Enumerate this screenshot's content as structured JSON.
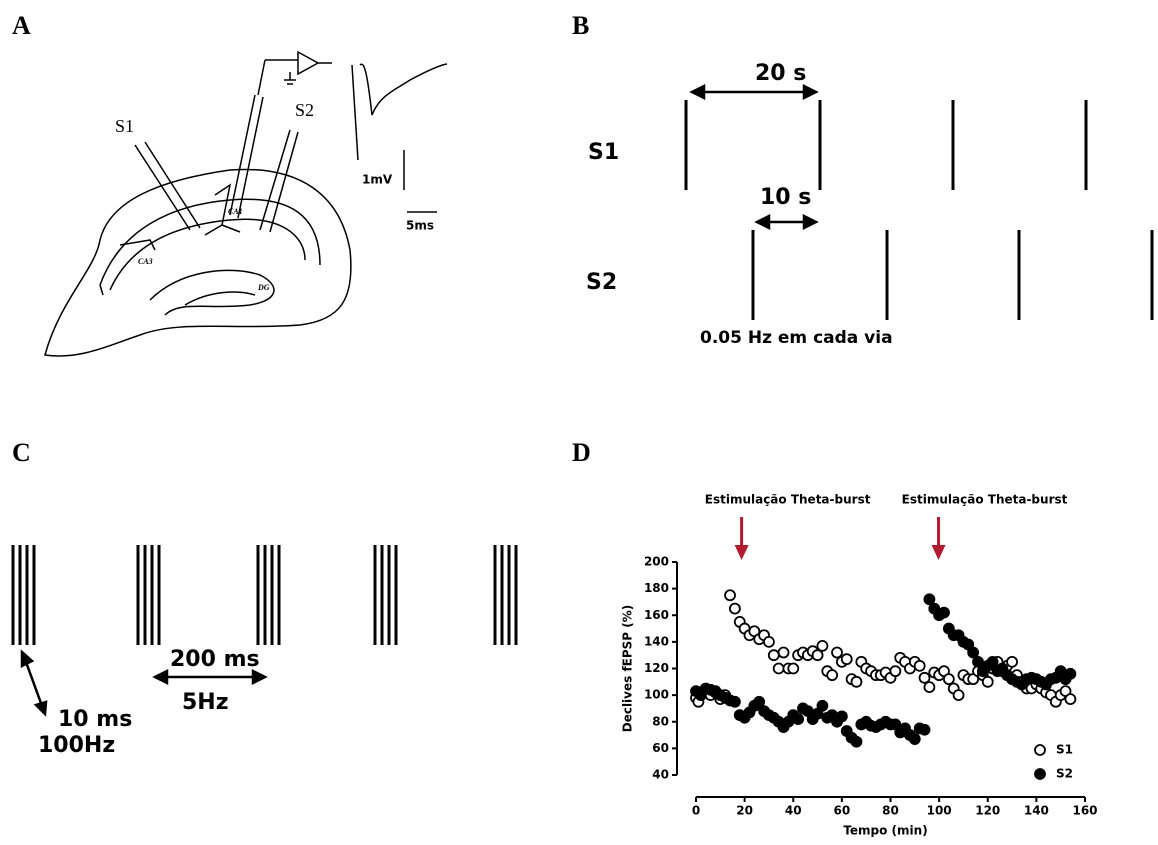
{
  "panel_a": {
    "label": "A",
    "s1": "S1",
    "s2": "S2",
    "ca1": "CA1",
    "ca3": "CA3",
    "dg": "DG",
    "mv": "1mV",
    "ms": "5ms"
  },
  "panel_b": {
    "label": "B",
    "period": "20 s",
    "s1": "S1",
    "offset": "10 s",
    "s2": "S2",
    "note": "0.05 Hz em cada via"
  },
  "panel_c": {
    "label": "C",
    "interval": "200 ms",
    "freq": "5Hz",
    "pulse": "10 ms",
    "pulse_freq": "100Hz"
  },
  "panel_d": {
    "label": "D"
  },
  "chart_data": {
    "type": "scatter",
    "x_label": "Tempo (min)",
    "y_label": "Declives fEPSP (%)",
    "xlim": [
      0,
      160
    ],
    "xticks": [
      0,
      20,
      40,
      60,
      80,
      100,
      120,
      140,
      160
    ],
    "ylim": [
      40,
      200
    ],
    "yticks": [
      40,
      60,
      80,
      100,
      120,
      140,
      160,
      180,
      200
    ],
    "annotations": [
      {
        "text": "Estimulação Theta-burst",
        "x": 13
      },
      {
        "text": "Estimulação Theta-burst",
        "x": 94
      }
    ],
    "series": [
      {
        "name": "S1",
        "color": "#000000",
        "marker": "open",
        "x": [
          0,
          1,
          2,
          4,
          6,
          8,
          10,
          12,
          14,
          16,
          18,
          20,
          22,
          24,
          26,
          28,
          30,
          32,
          34,
          36,
          38,
          40,
          42,
          44,
          46,
          48,
          50,
          52,
          54,
          56,
          58,
          60,
          62,
          64,
          66,
          68,
          70,
          72,
          74,
          76,
          78,
          80,
          82,
          84,
          86,
          88,
          90,
          92,
          94,
          96,
          98,
          100,
          102,
          104,
          106,
          108,
          110,
          112,
          114,
          116,
          118,
          120,
          122,
          124,
          126,
          128,
          130,
          132,
          134,
          136,
          138,
          140,
          142,
          144,
          146,
          148,
          150,
          152,
          154
        ],
        "values": [
          98,
          95,
          100,
          103,
          100,
          103,
          97,
          100,
          175,
          165,
          155,
          150,
          145,
          148,
          142,
          145,
          140,
          130,
          120,
          132,
          120,
          120,
          130,
          132,
          130,
          133,
          130,
          137,
          118,
          115,
          132,
          125,
          127,
          112,
          110,
          125,
          120,
          118,
          115,
          115,
          117,
          113,
          118,
          128,
          125,
          120,
          125,
          122,
          113,
          106,
          117,
          115,
          118,
          112,
          105,
          100,
          115,
          112,
          112,
          118,
          115,
          110,
          120,
          125,
          118,
          122,
          125,
          115,
          110,
          105,
          105,
          108,
          105,
          102,
          100,
          95,
          100,
          103,
          97
        ]
      },
      {
        "name": "S2",
        "color": "#000000",
        "marker": "filled",
        "x": [
          0,
          2,
          4,
          6,
          8,
          10,
          12,
          14,
          16,
          18,
          20,
          22,
          24,
          26,
          28,
          30,
          32,
          34,
          36,
          38,
          40,
          42,
          44,
          46,
          48,
          50,
          52,
          54,
          56,
          58,
          60,
          62,
          64,
          66,
          68,
          70,
          72,
          74,
          76,
          78,
          80,
          82,
          84,
          86,
          88,
          90,
          92,
          94,
          96,
          98,
          100,
          102,
          104,
          106,
          108,
          110,
          112,
          114,
          116,
          118,
          120,
          122,
          124,
          126,
          128,
          130,
          132,
          134,
          136,
          138,
          140,
          142,
          144,
          146,
          148,
          150,
          152,
          154
        ],
        "values": [
          103,
          100,
          105,
          104,
          102,
          100,
          98,
          96,
          95,
          85,
          83,
          87,
          92,
          95,
          88,
          85,
          83,
          80,
          76,
          80,
          85,
          82,
          90,
          88,
          82,
          86,
          92,
          83,
          85,
          80,
          84,
          73,
          68,
          65,
          78,
          80,
          77,
          76,
          78,
          80,
          78,
          78,
          72,
          75,
          70,
          67,
          75,
          74,
          172,
          165,
          160,
          162,
          150,
          145,
          145,
          140,
          138,
          132,
          125,
          118,
          122,
          125,
          118,
          120,
          115,
          112,
          110,
          108,
          112,
          113,
          112,
          110,
          108,
          112,
          113,
          118,
          112,
          116
        ]
      }
    ]
  }
}
